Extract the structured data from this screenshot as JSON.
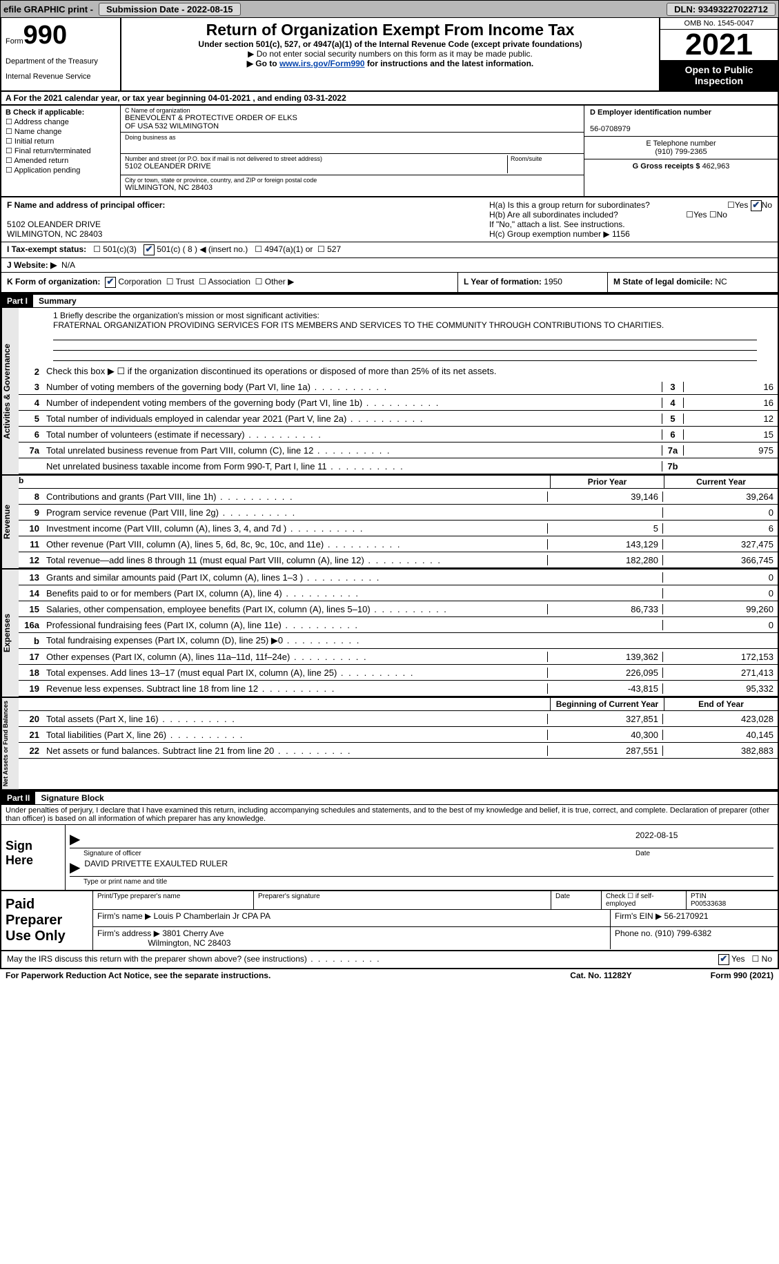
{
  "topbar": {
    "efile": "efile GRAPHIC print -",
    "submission_label": "Submission Date - 2022-08-15",
    "dln_label": "DLN: 93493227022712"
  },
  "header": {
    "form_word": "Form",
    "form_num": "990",
    "dept": "Department of the Treasury",
    "irs": "Internal Revenue Service",
    "title": "Return of Organization Exempt From Income Tax",
    "sub1": "Under section 501(c), 527, or 4947(a)(1) of the Internal Revenue Code (except private foundations)",
    "sub2": "▶ Do not enter social security numbers on this form as it may be made public.",
    "sub3_pre": "▶ Go to ",
    "sub3_link": "www.irs.gov/Form990",
    "sub3_post": " for instructions and the latest information.",
    "omb": "OMB No. 1545-0047",
    "year": "2021",
    "inspect1": "Open to Public",
    "inspect2": "Inspection"
  },
  "row_a": "A    For the 2021 calendar year, or tax year beginning 04-01-2021    , and ending 03-31-2022",
  "col_b": {
    "label": "B Check if applicable:",
    "items": [
      "Address change",
      "Name change",
      "Initial return",
      "Final return/terminated",
      "Amended return",
      "Application pending"
    ]
  },
  "col_c": {
    "name_label": "C Name of organization",
    "name1": "BENEVOLENT & PROTECTIVE ORDER OF ELKS",
    "name2": "OF USA 532 WILMINGTON",
    "dba_label": "Doing business as",
    "street_label": "Number and street (or P.O. box if mail is not delivered to street address)",
    "room_label": "Room/suite",
    "street": "5102 OLEANDER DRIVE",
    "city_label": "City or town, state or province, country, and ZIP or foreign postal code",
    "city": "WILMINGTON, NC  28403"
  },
  "col_d": {
    "ein_label": "D Employer identification number",
    "ein": "56-0708979",
    "phone_label": "E Telephone number",
    "phone": "(910) 799-2365",
    "gross_label": "G Gross receipts $",
    "gross": "462,963"
  },
  "row_f": {
    "label": "F  Name and address of principal officer:",
    "addr1": "5102 OLEANDER DRIVE",
    "addr2": "WILMINGTON, NC  28403"
  },
  "row_h": {
    "ha": "H(a)  Is this a group return for subordinates?",
    "hb": "H(b)  Are all subordinates included?",
    "hb_note": "If \"No,\" attach a list. See instructions.",
    "hc": "H(c)  Group exemption number ▶",
    "hc_val": "1156"
  },
  "row_i": {
    "label": "I    Tax-exempt status:",
    "opt1": "501(c)(3)",
    "opt2": "501(c) ( 8 ) ◀ (insert no.)",
    "opt3": "4947(a)(1) or",
    "opt4": "527"
  },
  "row_j": {
    "label": "J   Website: ▶",
    "val": "N/A"
  },
  "row_k": {
    "label": "K Form of organization:",
    "opts": [
      "Corporation",
      "Trust",
      "Association",
      "Other ▶"
    ]
  },
  "row_l": {
    "label": "L Year of formation:",
    "val": "1950"
  },
  "row_m": {
    "label": "M State of legal domicile:",
    "val": "NC"
  },
  "parts": {
    "p1": "Part I",
    "p1_title": "Summary",
    "p2": "Part II",
    "p2_title": "Signature Block"
  },
  "mission": {
    "label": "1   Briefly describe the organization's mission or most significant activities:",
    "text": "FRATERNAL ORGANIZATION PROVIDING SERVICES FOR ITS MEMBERS AND SERVICES TO THE COMMUNITY THROUGH CONTRIBUTIONS TO CHARITIES."
  },
  "line2": "Check this box ▶ ☐ if the organization discontinued its operations or disposed of more than 25% of its net assets.",
  "vtabs": {
    "gov": "Activities & Governance",
    "rev": "Revenue",
    "exp": "Expenses",
    "net": "Net Assets or Fund Balances"
  },
  "gov_lines": [
    {
      "n": "3",
      "d": "Number of voting members of the governing body (Part VI, line 1a)",
      "box": "3",
      "v": "16"
    },
    {
      "n": "4",
      "d": "Number of independent voting members of the governing body (Part VI, line 1b)",
      "box": "4",
      "v": "16"
    },
    {
      "n": "5",
      "d": "Total number of individuals employed in calendar year 2021 (Part V, line 2a)",
      "box": "5",
      "v": "12"
    },
    {
      "n": "6",
      "d": "Total number of volunteers (estimate if necessary)",
      "box": "6",
      "v": "15"
    },
    {
      "n": "7a",
      "d": "Total unrelated business revenue from Part VIII, column (C), line 12",
      "box": "7a",
      "v": "975"
    },
    {
      "n": "",
      "d": "Net unrelated business taxable income from Form 990-T, Part I, line 11",
      "box": "7b",
      "v": ""
    }
  ],
  "col_hdrs": {
    "prior": "Prior Year",
    "current": "Current Year",
    "begin": "Beginning of Current Year",
    "end": "End of Year"
  },
  "rev_lines": [
    {
      "n": "8",
      "d": "Contributions and grants (Part VIII, line 1h)",
      "p": "39,146",
      "c": "39,264"
    },
    {
      "n": "9",
      "d": "Program service revenue (Part VIII, line 2g)",
      "p": "",
      "c": "0"
    },
    {
      "n": "10",
      "d": "Investment income (Part VIII, column (A), lines 3, 4, and 7d )",
      "p": "5",
      "c": "6"
    },
    {
      "n": "11",
      "d": "Other revenue (Part VIII, column (A), lines 5, 6d, 8c, 9c, 10c, and 11e)",
      "p": "143,129",
      "c": "327,475"
    },
    {
      "n": "12",
      "d": "Total revenue—add lines 8 through 11 (must equal Part VIII, column (A), line 12)",
      "p": "182,280",
      "c": "366,745"
    }
  ],
  "exp_lines": [
    {
      "n": "13",
      "d": "Grants and similar amounts paid (Part IX, column (A), lines 1–3 )",
      "p": "",
      "c": "0"
    },
    {
      "n": "14",
      "d": "Benefits paid to or for members (Part IX, column (A), line 4)",
      "p": "",
      "c": "0"
    },
    {
      "n": "15",
      "d": "Salaries, other compensation, employee benefits (Part IX, column (A), lines 5–10)",
      "p": "86,733",
      "c": "99,260"
    },
    {
      "n": "16a",
      "d": "Professional fundraising fees (Part IX, column (A), line 11e)",
      "p": "",
      "c": "0"
    },
    {
      "n": "b",
      "d": "Total fundraising expenses (Part IX, column (D), line 25) ▶0",
      "p": "",
      "c": "",
      "shaded": true
    },
    {
      "n": "17",
      "d": "Other expenses (Part IX, column (A), lines 11a–11d, 11f–24e)",
      "p": "139,362",
      "c": "172,153"
    },
    {
      "n": "18",
      "d": "Total expenses. Add lines 13–17 (must equal Part IX, column (A), line 25)",
      "p": "226,095",
      "c": "271,413"
    },
    {
      "n": "19",
      "d": "Revenue less expenses. Subtract line 18 from line 12",
      "p": "-43,815",
      "c": "95,332"
    }
  ],
  "net_lines": [
    {
      "n": "20",
      "d": "Total assets (Part X, line 16)",
      "p": "327,851",
      "c": "423,028"
    },
    {
      "n": "21",
      "d": "Total liabilities (Part X, line 26)",
      "p": "40,300",
      "c": "40,145"
    },
    {
      "n": "22",
      "d": "Net assets or fund balances. Subtract line 21 from line 20",
      "p": "287,551",
      "c": "382,883"
    }
  ],
  "sig": {
    "penalties": "Under penalties of perjury, I declare that I have examined this return, including accompanying schedules and statements, and to the best of my knowledge and belief, it is true, correct, and complete. Declaration of preparer (other than officer) is based on all information of which preparer has any knowledge.",
    "sign_here": "Sign Here",
    "sig_officer": "Signature of officer",
    "date": "2022-08-15",
    "date_label": "Date",
    "name": "DAVID PRIVETTE  EXAULTED RULER",
    "name_label": "Type or print name and title"
  },
  "prep": {
    "label": "Paid Preparer Use Only",
    "h1": "Print/Type preparer's name",
    "h2": "Preparer's signature",
    "h3": "Date",
    "h4": "Check ☐ if self-employed",
    "h5": "PTIN",
    "ptin": "P00533638",
    "firm_label": "Firm's name    ▶",
    "firm": "Louis P Chamberlain Jr CPA PA",
    "ein_label": "Firm's EIN ▶",
    "ein": "56-2170921",
    "addr_label": "Firm's address ▶",
    "addr1": "3801 Cherry Ave",
    "addr2": "Wilmington, NC  28403",
    "phone_label": "Phone no.",
    "phone": "(910) 799-6382"
  },
  "footer": {
    "discuss": "May the IRS discuss this return with the preparer shown above? (see instructions)",
    "notice": "For Paperwork Reduction Act Notice, see the separate instructions.",
    "cat": "Cat. No. 11282Y",
    "form": "Form 990 (2021)"
  }
}
